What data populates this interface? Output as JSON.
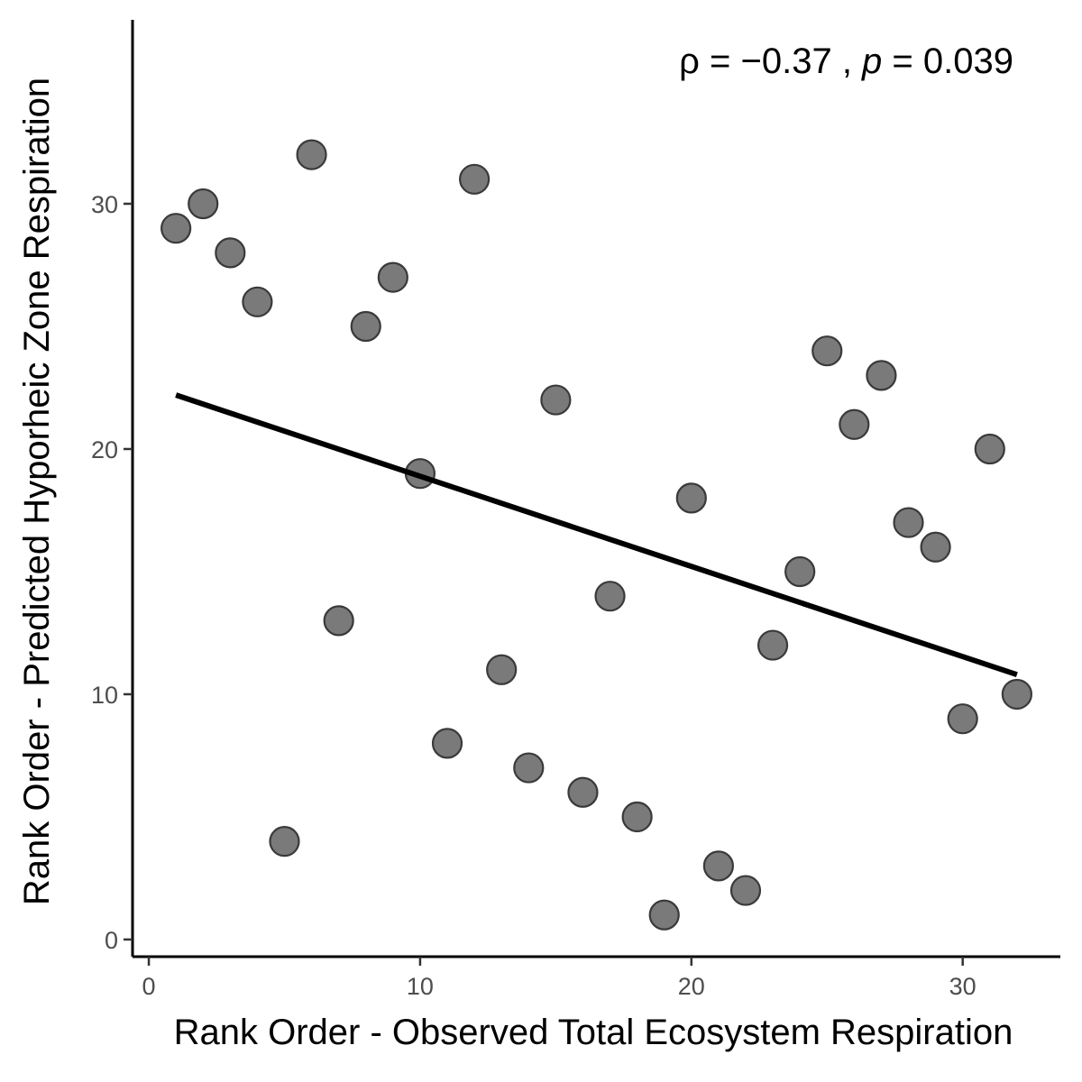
{
  "chart_data": {
    "type": "scatter",
    "title": "",
    "xlabel": "Rank Order - Observed Total Ecosystem Respiration",
    "ylabel": "Rank Order - Predicted Hyporheic Zone Respiration",
    "xlim": [
      -0.6,
      33.6
    ],
    "ylim": [
      -0.7,
      37.5
    ],
    "x_ticks": [
      0,
      10,
      20,
      30
    ],
    "y_ticks": [
      0,
      10,
      20,
      30
    ],
    "grid": false,
    "legend": "none",
    "point_color": "#7a7a7a",
    "line_color": "#000000",
    "annotation": {
      "rho_symbol": "ρ",
      "equals1": " = ",
      "minus": "−",
      "rho_value": "0.37",
      "separator": " , ",
      "p_symbol": "p",
      "equals2": " = ",
      "p_value": "0.039"
    },
    "points": [
      {
        "x": 1,
        "y": 29
      },
      {
        "x": 2,
        "y": 30
      },
      {
        "x": 3,
        "y": 28
      },
      {
        "x": 4,
        "y": 26
      },
      {
        "x": 5,
        "y": 4
      },
      {
        "x": 6,
        "y": 32
      },
      {
        "x": 7,
        "y": 13
      },
      {
        "x": 8,
        "y": 25
      },
      {
        "x": 9,
        "y": 27
      },
      {
        "x": 10,
        "y": 19
      },
      {
        "x": 11,
        "y": 8
      },
      {
        "x": 12,
        "y": 31
      },
      {
        "x": 13,
        "y": 11
      },
      {
        "x": 14,
        "y": 7
      },
      {
        "x": 15,
        "y": 22
      },
      {
        "x": 16,
        "y": 6
      },
      {
        "x": 17,
        "y": 14
      },
      {
        "x": 18,
        "y": 5
      },
      {
        "x": 19,
        "y": 1
      },
      {
        "x": 20,
        "y": 18
      },
      {
        "x": 21,
        "y": 3
      },
      {
        "x": 22,
        "y": 2
      },
      {
        "x": 23,
        "y": 12
      },
      {
        "x": 24,
        "y": 15
      },
      {
        "x": 25,
        "y": 24
      },
      {
        "x": 26,
        "y": 21
      },
      {
        "x": 27,
        "y": 23
      },
      {
        "x": 28,
        "y": 17
      },
      {
        "x": 29,
        "y": 16
      },
      {
        "x": 30,
        "y": 9
      },
      {
        "x": 31,
        "y": 20
      },
      {
        "x": 32,
        "y": 10
      }
    ],
    "trend_line": {
      "x_start": 1,
      "y_start": 22.2,
      "x_end": 32,
      "y_end": 10.8
    }
  }
}
